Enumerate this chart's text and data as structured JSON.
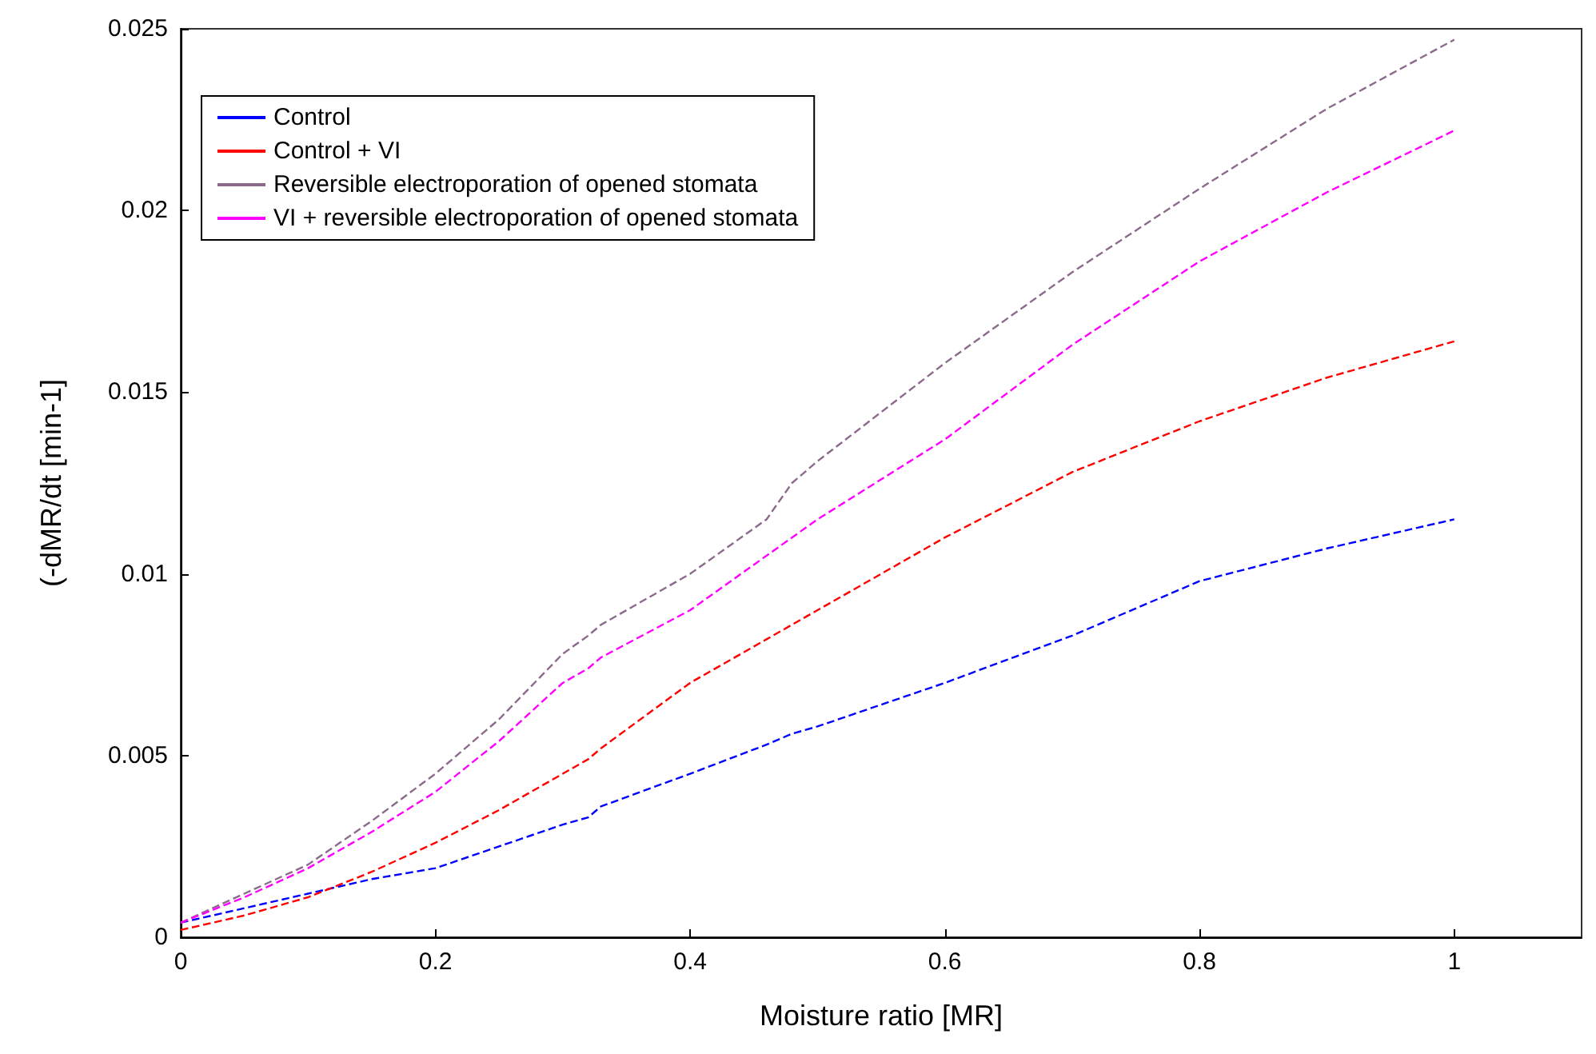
{
  "chart_data": {
    "type": "line",
    "xlabel": "Moisture ratio [MR]",
    "ylabel": "(-dMR/dt [min-1]",
    "xlim": [
      0,
      1.1
    ],
    "xticks": [
      0,
      0.2,
      0.4,
      0.6,
      0.8,
      1
    ],
    "ylim": [
      0,
      0.025
    ],
    "yticks": [
      0,
      0.005,
      0.01,
      0.015,
      0.02,
      0.025
    ],
    "grid": false,
    "legend": "top left",
    "line_style": "dashed",
    "marker": "none",
    "x": [
      0,
      0.05,
      0.1,
      0.15,
      0.2,
      0.25,
      0.3,
      0.32,
      0.33,
      0.4,
      0.46,
      0.48,
      0.5,
      0.6,
      0.7,
      0.8,
      0.9,
      1
    ],
    "series": [
      {
        "name": "Control",
        "color": "#0000ff",
        "values": [
          0.0004,
          0.0008,
          0.0012,
          0.0016,
          0.0019,
          0.0025,
          0.0031,
          0.0033,
          0.0036,
          0.0045,
          0.0053,
          0.0056,
          0.0058,
          0.007,
          0.0083,
          0.0098,
          0.0107,
          0.0115
        ]
      },
      {
        "name": "Control + VI",
        "color": "#ff0000",
        "values": [
          0.0002,
          0.0006,
          0.0011,
          0.0018,
          0.0026,
          0.0035,
          0.0045,
          0.0049,
          0.0052,
          0.007,
          0.0082,
          0.0086,
          0.009,
          0.011,
          0.0128,
          0.0142,
          0.0154,
          0.0164
        ]
      },
      {
        "name": "Reversible electroporation of opened stomata",
        "color": "#8c6a8c",
        "values": [
          0.0004,
          0.0012,
          0.002,
          0.0032,
          0.0045,
          0.006,
          0.0078,
          0.0083,
          0.0086,
          0.01,
          0.0115,
          0.0125,
          0.0131,
          0.0158,
          0.0183,
          0.0206,
          0.0228,
          0.0247
        ]
      },
      {
        "name": "VI + reversible electroporation of opened stomata",
        "color": "#ff00ff",
        "values": [
          0.0004,
          0.0011,
          0.0019,
          0.0029,
          0.004,
          0.0054,
          0.007,
          0.0074,
          0.0077,
          0.009,
          0.0105,
          0.011,
          0.0115,
          0.0137,
          0.0163,
          0.0186,
          0.0205,
          0.0222
        ]
      }
    ]
  }
}
